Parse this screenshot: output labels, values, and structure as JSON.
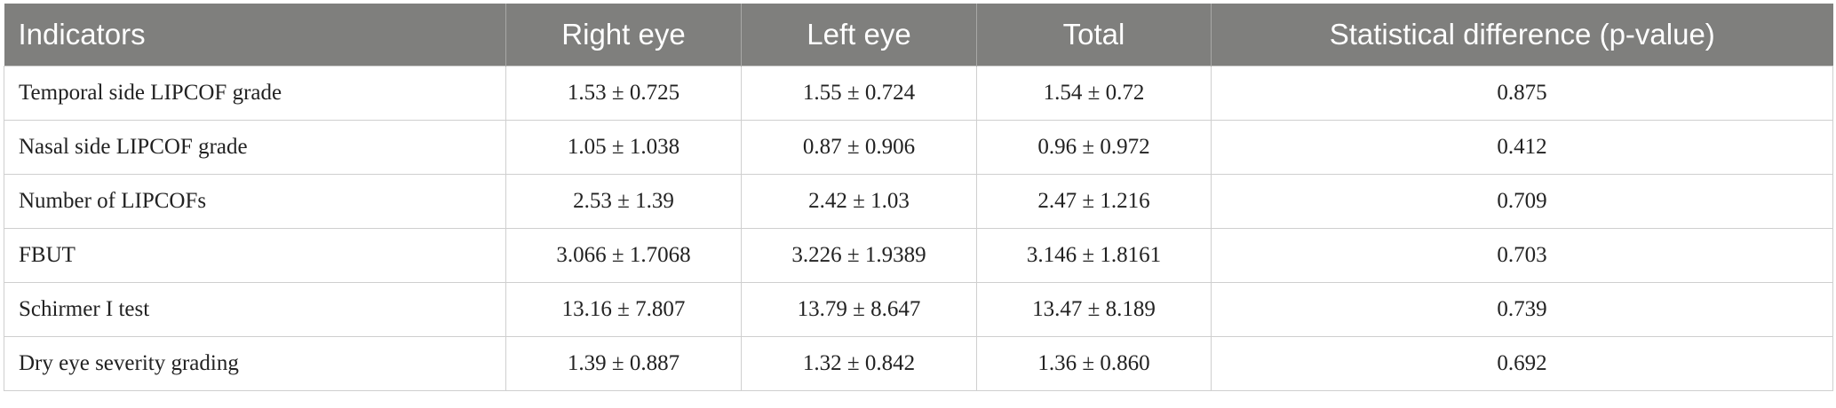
{
  "table": {
    "header": [
      "Indicators",
      "Right eye",
      "Left eye",
      "Total",
      "Statistical difference (p-value)"
    ],
    "rows": [
      [
        "Temporal side LIPCOF grade",
        "1.53 ± 0.725",
        "1.55 ± 0.724",
        "1.54 ± 0.72",
        "0.875"
      ],
      [
        "Nasal side LIPCOF grade",
        "1.05 ± 1.038",
        "0.87 ± 0.906",
        "0.96 ± 0.972",
        "0.412"
      ],
      [
        "Number of LIPCOFs",
        "2.53 ± 1.39",
        "2.42 ± 1.03",
        "2.47 ± 1.216",
        "0.709"
      ],
      [
        "FBUT",
        "3.066 ± 1.7068",
        "3.226 ± 1.9389",
        "3.146 ± 1.8161",
        "0.703"
      ],
      [
        "Schirmer I test",
        "13.16 ± 7.807",
        "13.79 ± 8.647",
        "13.47 ± 8.189",
        "0.739"
      ],
      [
        "Dry eye severity grading",
        "1.39 ± 0.887",
        "1.32 ± 0.842",
        "1.36 ± 0.860",
        "0.692"
      ]
    ]
  }
}
